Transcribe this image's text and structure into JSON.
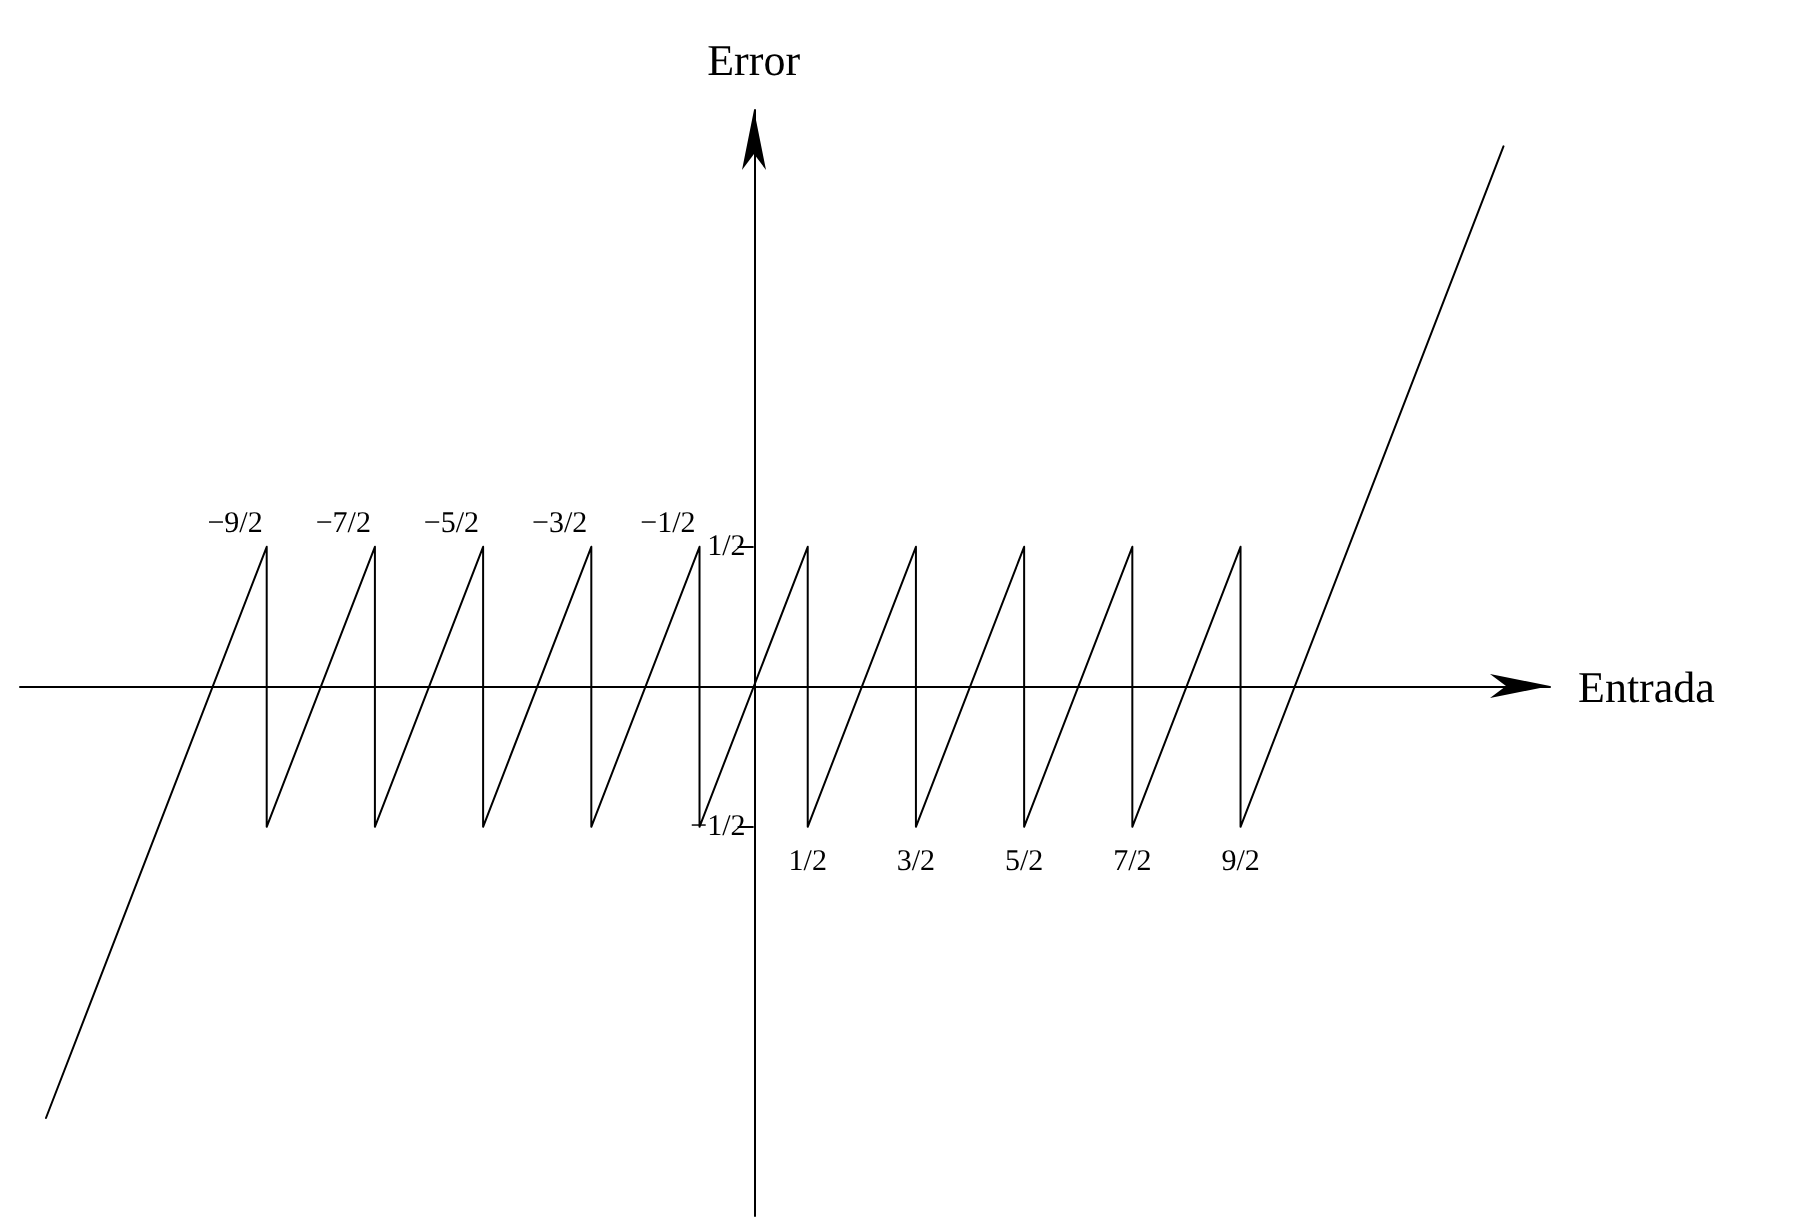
{
  "chart_data": {
    "type": "line",
    "xlabel": "Entrada",
    "ylabel": "Error",
    "x": [
      -6.54,
      -4.5,
      -4.5,
      -3.5,
      -3.5,
      -2.5,
      -2.5,
      -1.5,
      -1.5,
      -0.5,
      -0.5,
      0.5,
      0.5,
      1.5,
      1.5,
      2.5,
      2.5,
      3.5,
      3.5,
      4.5,
      4.5,
      6.93
    ],
    "values": [
      -1.54,
      0.5,
      -0.5,
      0.5,
      -0.5,
      0.5,
      -0.5,
      0.5,
      -0.5,
      0.5,
      -0.5,
      0.5,
      -0.5,
      0.5,
      -0.5,
      0.5,
      -0.5,
      0.5,
      -0.5,
      0.5,
      -0.5,
      1.93
    ],
    "color": "#000000",
    "marker": "none",
    "xlim": [
      -6.78,
      7.36
    ],
    "ylim": [
      -1.89,
      2.06
    ],
    "xticks": [
      {
        "value": 0.5,
        "label": "1/2"
      },
      {
        "value": 1.5,
        "label": "3/2"
      },
      {
        "value": 2.5,
        "label": "5/2"
      },
      {
        "value": 3.5,
        "label": "7/2"
      },
      {
        "value": 4.5,
        "label": "9/2"
      }
    ],
    "yticks": [
      {
        "value": 0.5,
        "label": "1/2"
      },
      {
        "value": -0.5,
        "label": "−1/2"
      }
    ],
    "annotations": [
      {
        "text": "−9/2",
        "x": -4.5,
        "y": 0.5
      },
      {
        "text": "−7/2",
        "x": -3.5,
        "y": 0.5
      },
      {
        "text": "−5/2",
        "x": -2.5,
        "y": 0.5
      },
      {
        "text": "−3/2",
        "x": -1.5,
        "y": 0.5
      },
      {
        "text": "−1/2",
        "x": -0.5,
        "y": 0.5
      }
    ]
  }
}
